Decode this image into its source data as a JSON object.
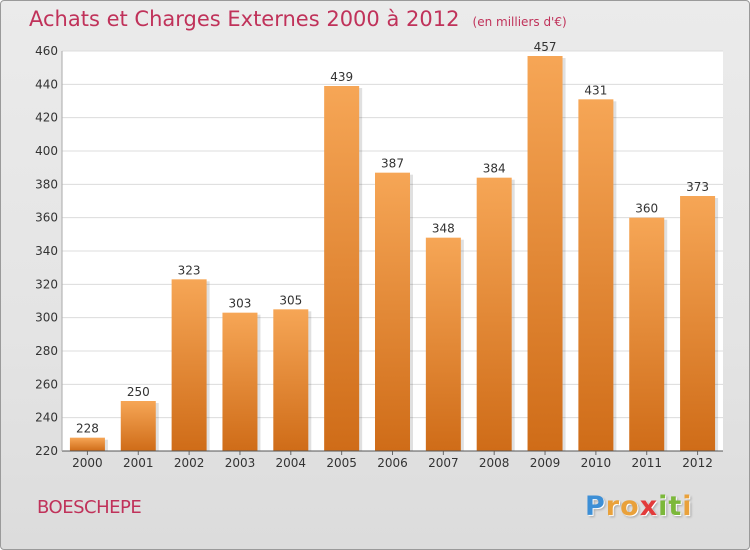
{
  "chart_data": {
    "type": "bar",
    "title": "Achats et Charges Externes 2000 à 2012",
    "unit_note": "(en milliers d'€)",
    "categories": [
      "2000",
      "2001",
      "2002",
      "2003",
      "2004",
      "2005",
      "2006",
      "2007",
      "2008",
      "2009",
      "2010",
      "2011",
      "2012"
    ],
    "values": [
      228,
      250,
      323,
      303,
      305,
      439,
      387,
      348,
      384,
      457,
      431,
      360,
      373
    ],
    "ylim": [
      220,
      460
    ],
    "yticks": [
      220,
      240,
      260,
      280,
      300,
      320,
      340,
      360,
      380,
      400,
      420,
      440,
      460
    ],
    "grid": true,
    "xlabel": "",
    "ylabel": "",
    "colors": {
      "bar_top": "#f6a656",
      "bar_bottom": "#cf6c18",
      "title": "#c0325a"
    }
  },
  "commune": "BOESCHEPE",
  "brand": {
    "letters": [
      "P",
      "r",
      "o",
      "x",
      "i",
      "t",
      "i"
    ],
    "colors": [
      "#3d8fd6",
      "#e9a13b",
      "#e9a13b",
      "#e23b3b",
      "#7cb83a",
      "#7cb83a",
      "#e9a13b"
    ]
  }
}
